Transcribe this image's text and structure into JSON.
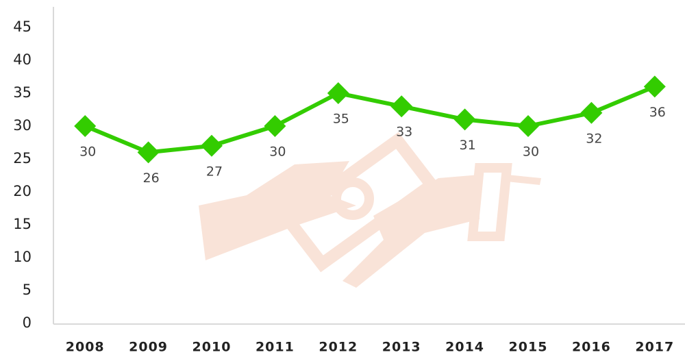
{
  "chart_data": {
    "type": "line",
    "categories": [
      "2008",
      "2009",
      "2010",
      "2011",
      "2012",
      "2013",
      "2014",
      "2015",
      "2016",
      "2017"
    ],
    "values": [
      30,
      26,
      27,
      30,
      35,
      33,
      31,
      30,
      32,
      36
    ],
    "color": "#33cc00",
    "ylim": [
      0,
      45
    ],
    "yticks": [
      0,
      5,
      10,
      15,
      20,
      25,
      30,
      35,
      40,
      45
    ],
    "grid": false
  }
}
